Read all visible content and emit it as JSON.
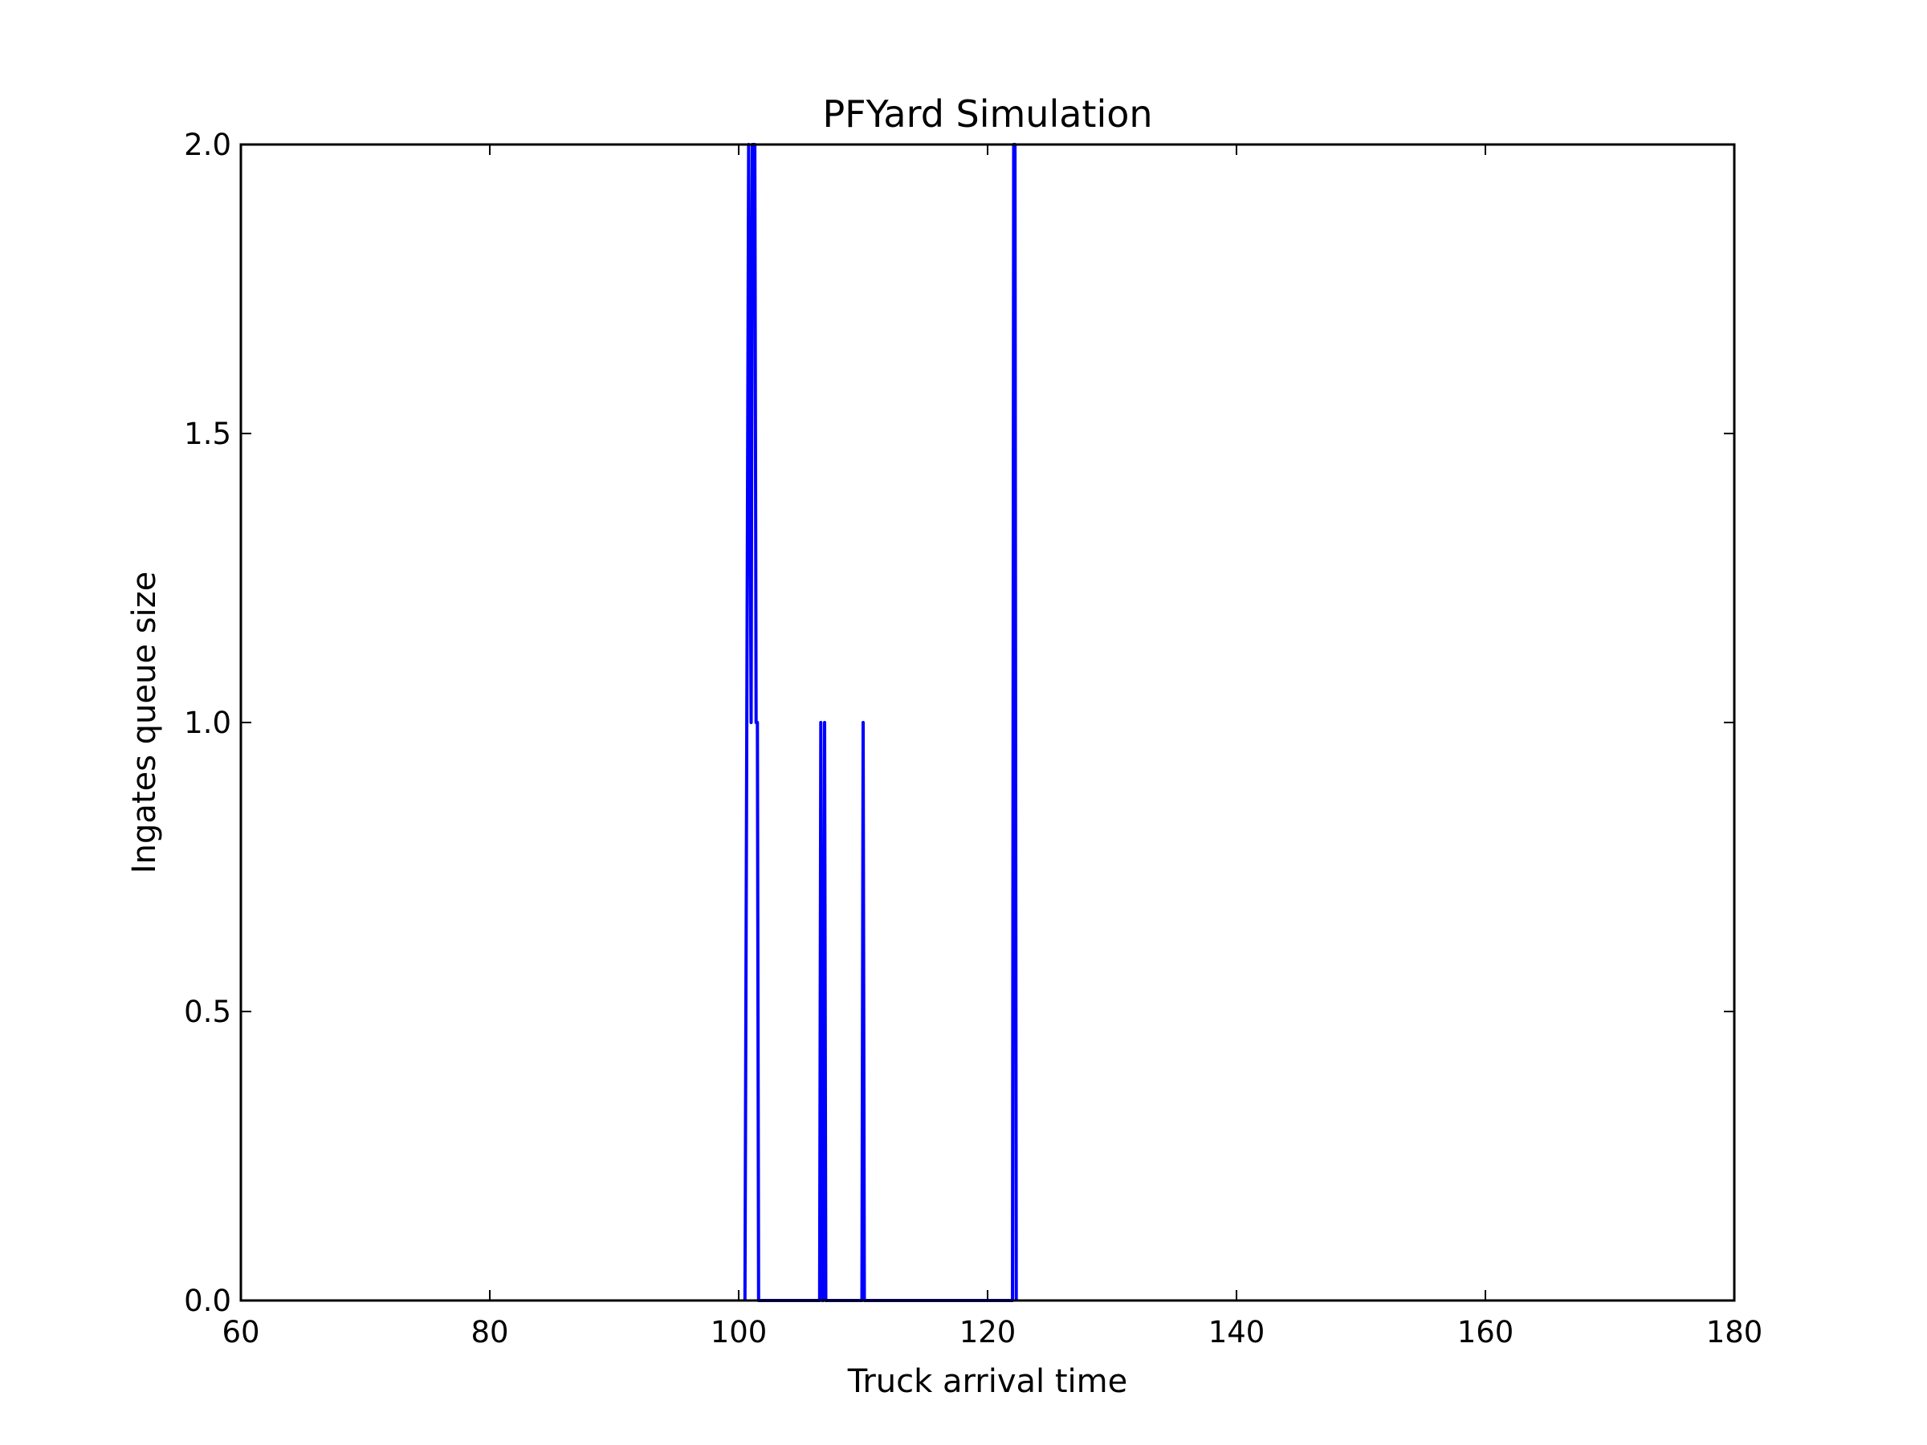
{
  "chart_data": {
    "type": "line",
    "title": "PFYard Simulation",
    "xlabel": "Truck arrival time",
    "ylabel": "Ingates queue size",
    "xlim": [
      60,
      180
    ],
    "ylim": [
      0,
      2
    ],
    "xticks": [
      60,
      80,
      100,
      120,
      140,
      160,
      180
    ],
    "xtick_labels": [
      "60",
      "80",
      "100",
      "120",
      "140",
      "160",
      "180"
    ],
    "yticks": [
      0,
      0.5,
      1,
      1.5,
      2
    ],
    "ytick_labels": [
      "0.0",
      "0.5",
      "1.0",
      "1.5",
      "2.0"
    ],
    "grid": false,
    "legend": "none",
    "series": [
      {
        "color": "#0000ff",
        "x": [
          100.5,
          100.8,
          101.0,
          101.1,
          101.3,
          101.4,
          101.5,
          101.6,
          101.7,
          106.5,
          106.6,
          106.7,
          106.8,
          106.9,
          107.0,
          107.1,
          107.2,
          109.9,
          110.0,
          110.1,
          110.2,
          122.0,
          122.1,
          122.2,
          122.3
        ],
        "y": [
          0,
          2,
          1,
          2,
          2,
          1,
          1,
          0,
          0,
          0,
          1,
          0,
          0,
          1,
          0,
          0,
          0,
          0,
          1,
          0,
          0,
          0,
          2,
          2,
          0
        ]
      }
    ]
  }
}
